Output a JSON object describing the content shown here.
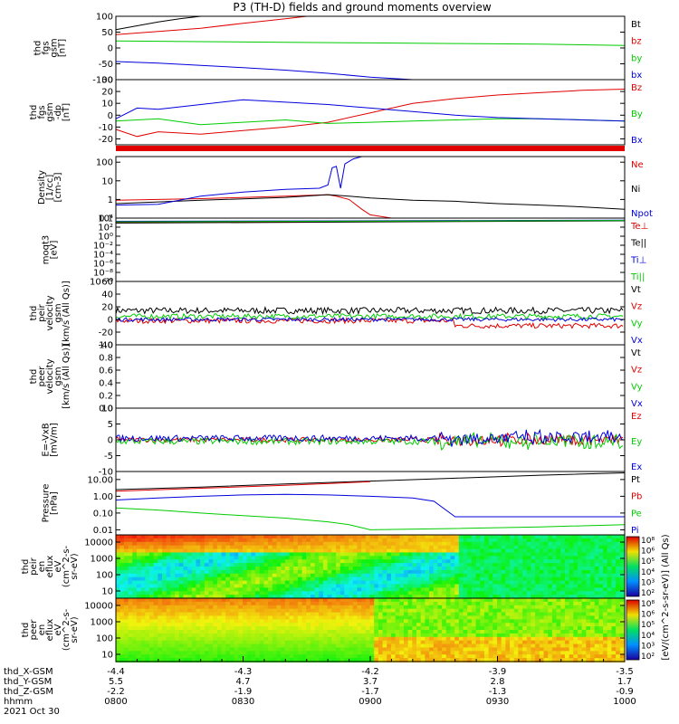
{
  "title": "P3 (TH-D) fields and ground moments overview",
  "colors": {
    "black": "#000000",
    "red": "#e00000",
    "green": "#00cc00",
    "blue": "#0000dd"
  },
  "chart_data": [
    {
      "type": "line",
      "ylabel": [
        "thd",
        "fgs",
        "gsm",
        "[nT]"
      ],
      "ylim": [
        -100,
        100
      ],
      "yticks": [
        100,
        50,
        0,
        -50,
        -100
      ],
      "series": [
        {
          "name": "Bt",
          "color": "black",
          "x": [
            0,
            5,
            10,
            15,
            20,
            25,
            27
          ],
          "y": [
            58,
            70,
            82,
            92,
            100,
            110,
            116
          ]
        },
        {
          "name": "bz",
          "color": "red",
          "x": [
            0,
            10,
            20,
            30,
            40,
            45,
            47
          ],
          "y": [
            42,
            52,
            62,
            78,
            92,
            100,
            102
          ]
        },
        {
          "name": "by",
          "color": "green",
          "x": [
            0,
            20,
            40,
            60,
            80,
            100,
            120
          ],
          "y": [
            22,
            20,
            18,
            16,
            14,
            12,
            8
          ]
        },
        {
          "name": "bx",
          "color": "blue",
          "x": [
            0,
            10,
            20,
            30,
            40,
            50,
            60,
            70,
            73
          ],
          "y": [
            -43,
            -48,
            -55,
            -62,
            -70,
            -80,
            -92,
            -100,
            -102
          ]
        }
      ]
    },
    {
      "type": "line",
      "ylabel": [
        "thd",
        "fgs",
        "gsm",
        "-dp",
        "[nT]"
      ],
      "ylim": [
        -25,
        30
      ],
      "yticks": [
        30,
        20,
        10,
        0,
        -10,
        -20
      ],
      "series": [
        {
          "name": "Bz",
          "color": "red",
          "x": [
            0,
            5,
            10,
            20,
            30,
            40,
            50,
            60,
            70,
            80,
            90,
            100,
            110,
            120
          ],
          "y": [
            -12,
            -18,
            -14,
            -16,
            -13,
            -10,
            -6,
            2,
            10,
            14,
            17,
            19,
            21,
            22
          ]
        },
        {
          "name": "By",
          "color": "green",
          "x": [
            0,
            10,
            20,
            30,
            40,
            50,
            60,
            70,
            80,
            90,
            100,
            110,
            120
          ],
          "y": [
            -5,
            -3,
            -8,
            -6,
            -4,
            -7,
            -6,
            -5,
            -4,
            -3,
            -3,
            -4,
            -5
          ]
        },
        {
          "name": "Bx",
          "color": "blue",
          "x": [
            0,
            5,
            10,
            20,
            30,
            40,
            50,
            60,
            70,
            80,
            90,
            100,
            110,
            120
          ],
          "y": [
            -3,
            6,
            5,
            9,
            13,
            11,
            9,
            6,
            3,
            0,
            -2,
            -3,
            -4,
            -5
          ]
        }
      ]
    },
    {
      "type": "line",
      "log": true,
      "ylabel": [
        "Density",
        "[1/cc]",
        "[cm-3]"
      ],
      "ylim": [
        0.1,
        200
      ],
      "yticks": [
        100,
        10,
        1,
        0.1
      ],
      "series": [
        {
          "name": "Ne",
          "color": "red",
          "x": [
            0,
            20,
            40,
            50,
            52,
            55,
            58,
            60,
            65,
            70,
            80,
            100,
            120
          ],
          "y": [
            0.9,
            1.1,
            1.5,
            1.8,
            1.5,
            1.0,
            0.3,
            0.15,
            0.1,
            0.1,
            0.1,
            0.1,
            0.1
          ]
        },
        {
          "name": "Ni",
          "color": "black",
          "x": [
            0,
            20,
            40,
            50,
            55,
            60,
            70,
            80,
            90,
            100,
            110,
            120
          ],
          "y": [
            0.6,
            0.9,
            1.3,
            1.8,
            1.5,
            1.2,
            0.9,
            0.8,
            0.6,
            0.5,
            0.4,
            0.3
          ]
        },
        {
          "name": "Npot",
          "color": "blue",
          "x": [
            0,
            10,
            20,
            30,
            40,
            48,
            50,
            51,
            52,
            53,
            54,
            56,
            58
          ],
          "y": [
            0.5,
            0.55,
            1.5,
            2.5,
            3.5,
            4.0,
            6,
            50,
            60,
            4,
            80,
            150,
            200
          ]
        }
      ]
    },
    {
      "type": "line",
      "log": true,
      "ylabel": [
        "moqt3",
        "[eV]"
      ],
      "ylim": [
        1e-10,
        10000.0
      ],
      "yticks": [
        10000.0,
        100.0,
        1.0,
        0.01,
        0.0001,
        1e-06,
        1e-08,
        1e-10
      ],
      "series": [
        {
          "name": "Te⊥",
          "color": "red",
          "x": [
            0,
            120
          ],
          "y": [
            1000,
            3000
          ]
        },
        {
          "name": "Te||",
          "color": "black",
          "x": [
            0,
            120
          ],
          "y": [
            800,
            2500
          ]
        },
        {
          "name": "Ti⊥",
          "color": "blue",
          "x": [
            0,
            120
          ],
          "y": [
            2000,
            3500
          ]
        },
        {
          "name": "Ti||",
          "color": "green",
          "x": [
            0,
            120
          ],
          "y": [
            1500,
            3000
          ]
        }
      ]
    },
    {
      "type": "line",
      "ylabel": [
        "thd",
        "peir",
        "velocity",
        "gsm",
        "[km/s (All Qs)]"
      ],
      "ylim": [
        -40,
        60
      ],
      "yticks": [
        60,
        40,
        20,
        0,
        -20,
        -40
      ],
      "series": [
        {
          "name": "Vt",
          "color": "black",
          "base": 14,
          "noise": 10
        },
        {
          "name": "Vz",
          "color": "red",
          "base": -2,
          "noise": 8
        },
        {
          "name": "Vy",
          "color": "green",
          "base": 5,
          "noise": 8
        },
        {
          "name": "Vx",
          "color": "blue",
          "base": 0,
          "noise": 6
        }
      ]
    },
    {
      "type": "line",
      "ylabel": [
        "thd",
        "peer",
        "velocity",
        "gsm",
        "[km/s (All Qs)]"
      ],
      "ylim": [
        0,
        1
      ],
      "yticks": [
        1.0,
        0.8,
        0.6,
        0.4,
        0.2,
        0.0
      ],
      "series": [
        {
          "name": "Vt",
          "color": "black"
        },
        {
          "name": "Vz",
          "color": "red"
        },
        {
          "name": "Vy",
          "color": "green"
        },
        {
          "name": "Vx",
          "color": "blue"
        }
      ]
    },
    {
      "type": "line",
      "ylabel": [
        "E=-VxB",
        "[mV/m]"
      ],
      "ylim": [
        -10,
        10
      ],
      "yticks": [
        10,
        5,
        0,
        -5,
        -10
      ],
      "series": [
        {
          "name": "Ez",
          "color": "red",
          "base": 0,
          "noise": 1.5
        },
        {
          "name": "Ey",
          "color": "green",
          "base": -0.5,
          "noise": 2
        },
        {
          "name": "Ex",
          "color": "blue",
          "base": 0.5,
          "noise": 2
        }
      ]
    },
    {
      "type": "line",
      "log": true,
      "ylabel": [
        "Pressure",
        "[nPa]"
      ],
      "ylim": [
        0.005,
        30
      ],
      "yticks": [
        10.0,
        1.0,
        0.1,
        0.01
      ],
      "ytick_labels": [
        "10.00",
        "1.00",
        "0.10",
        "0.01"
      ],
      "series": [
        {
          "name": "Pt",
          "color": "black",
          "x": [
            0,
            20,
            40,
            60,
            80,
            100,
            120
          ],
          "y": [
            2.5,
            3.5,
            5.5,
            8,
            12,
            18,
            25
          ]
        },
        {
          "name": "Pb",
          "color": "red",
          "x": [
            0,
            20,
            40,
            55,
            60
          ],
          "y": [
            2.0,
            3.0,
            4.5,
            6.5,
            7.5
          ]
        },
        {
          "name": "Pe",
          "color": "green",
          "x": [
            0,
            10,
            20,
            30,
            40,
            50,
            55,
            60,
            80,
            100,
            120
          ],
          "y": [
            0.2,
            0.15,
            0.1,
            0.07,
            0.05,
            0.03,
            0.02,
            0.01,
            0.012,
            0.015,
            0.02
          ]
        },
        {
          "name": "Pi",
          "color": "blue",
          "x": [
            0,
            10,
            20,
            30,
            40,
            50,
            60,
            70,
            75,
            80,
            90,
            100,
            120
          ],
          "y": [
            0.6,
            0.8,
            1.0,
            1.2,
            1.3,
            1.2,
            1.0,
            0.8,
            0.5,
            0.06,
            0.06,
            0.06,
            0.06
          ]
        }
      ]
    },
    {
      "type": "heatmap",
      "ylabel": [
        "thd",
        "peir",
        "en",
        "eflux",
        "eV",
        "(cm^2-s-",
        "sr-eV)"
      ],
      "yticks": [
        10000,
        1000,
        100,
        10
      ],
      "ytick_labels": [
        "10000",
        "1000",
        "100",
        "10"
      ]
    },
    {
      "type": "heatmap",
      "ylabel": [
        "thd",
        "peer",
        "en",
        "eflux",
        "eV",
        "(cm^2-s-",
        "sr-eV)"
      ],
      "yticks": [
        10000,
        1000,
        100,
        10
      ],
      "ytick_labels": [
        "10000",
        "1000",
        "100",
        "10"
      ]
    }
  ],
  "colorbars": [
    {
      "ticks": [
        "10⁸",
        "10⁶",
        "10⁵",
        "10⁴",
        "10³",
        "10²"
      ]
    },
    {
      "ticks": [
        "10⁸",
        "10⁶",
        "10⁵",
        "10⁴",
        "10³",
        "10²"
      ]
    }
  ],
  "colorbar_label": "[eV/(cm^2-s-sr-eV)] (All Qs)",
  "xaxis": {
    "row_labels": [
      "thd_X-GSM",
      "thd_Y-GSM",
      "thd_Z-GSM",
      "hhmm",
      "2021 Oct 30"
    ],
    "ticks": [
      {
        "t": 0,
        "X": "-4.4",
        "Y": "5.5",
        "Z": "-2.2",
        "hhmm": "0800"
      },
      {
        "t": 30,
        "X": "-4.3",
        "Y": "4.7",
        "Z": "-1.9",
        "hhmm": "0830"
      },
      {
        "t": 60,
        "X": "-4.2",
        "Y": "3.7",
        "Z": "-1.7",
        "hhmm": "0900"
      },
      {
        "t": 90,
        "X": "-3.9",
        "Y": "2.8",
        "Z": "-1.3",
        "hhmm": "0930"
      },
      {
        "t": 120,
        "X": "-3.5",
        "Y": "1.7",
        "Z": "-0.9",
        "hhmm": "1000"
      }
    ]
  }
}
